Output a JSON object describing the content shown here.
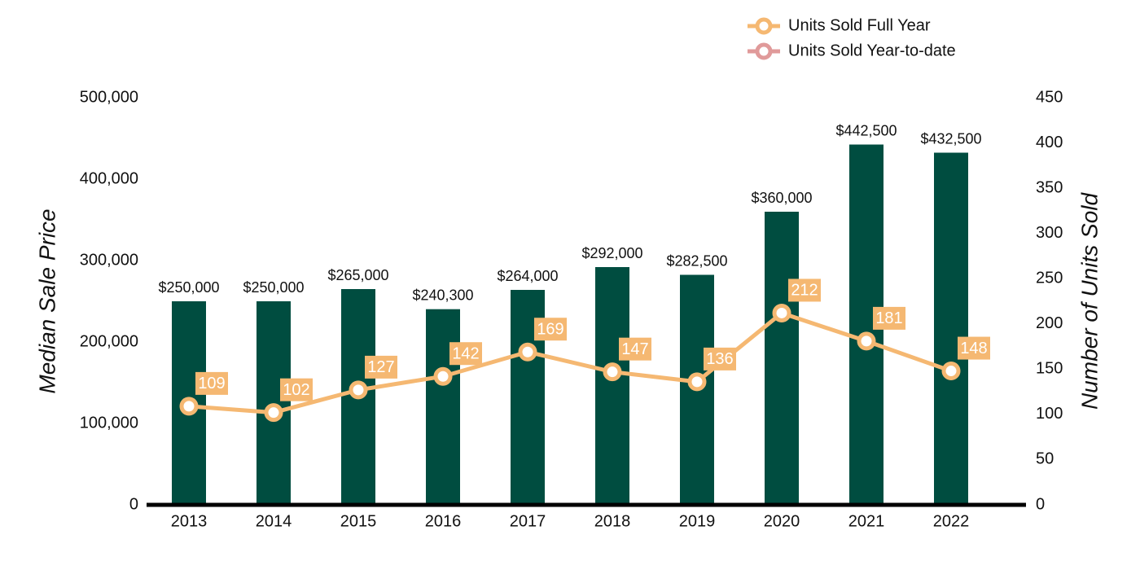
{
  "chart_data": {
    "type": "bar",
    "categories": [
      "2013",
      "2014",
      "2015",
      "2016",
      "2017",
      "2018",
      "2019",
      "2020",
      "2021",
      "2022"
    ],
    "ylabel": "Median Sale Price",
    "y2label": "Number of Units Sold",
    "ylim": [
      0,
      500000
    ],
    "yticks": [
      0,
      {
        "value": 100000,
        "label": "100,000"
      },
      {
        "value": 200000,
        "label": "200,000"
      },
      {
        "value": 300000,
        "label": "300,000"
      },
      {
        "value": 400000,
        "label": "400,000"
      },
      {
        "value": 500000,
        "label": "500,000"
      }
    ],
    "y2lim": [
      0,
      450
    ],
    "y2ticks": [
      0,
      50,
      100,
      150,
      200,
      250,
      300,
      350,
      400,
      450
    ],
    "legend": "top-right",
    "series": [
      {
        "type": "bar",
        "color": "#004d40",
        "values": [
          250000,
          250000,
          265000,
          240300,
          264000,
          292000,
          282500,
          360000,
          442500,
          432500
        ],
        "value_labels": [
          "$250,000",
          "$250,000",
          "$265,000",
          "$240,300",
          "$264,000",
          "$292,000",
          "$282,500",
          "$360,000",
          "$442,500",
          "$432,500"
        ]
      },
      {
        "type": "line",
        "name": "Units Sold Full Year",
        "color": "#f5b872",
        "axis": "y2",
        "values": [
          109,
          102,
          127,
          142,
          169,
          147,
          136,
          212,
          181,
          148
        ]
      },
      {
        "type": "line",
        "name": "Units Sold Year-to-date",
        "color": "#e09a9a",
        "axis": "y2",
        "values": [
          null,
          null,
          null,
          null,
          null,
          null,
          null,
          null,
          null,
          null
        ]
      }
    ]
  }
}
